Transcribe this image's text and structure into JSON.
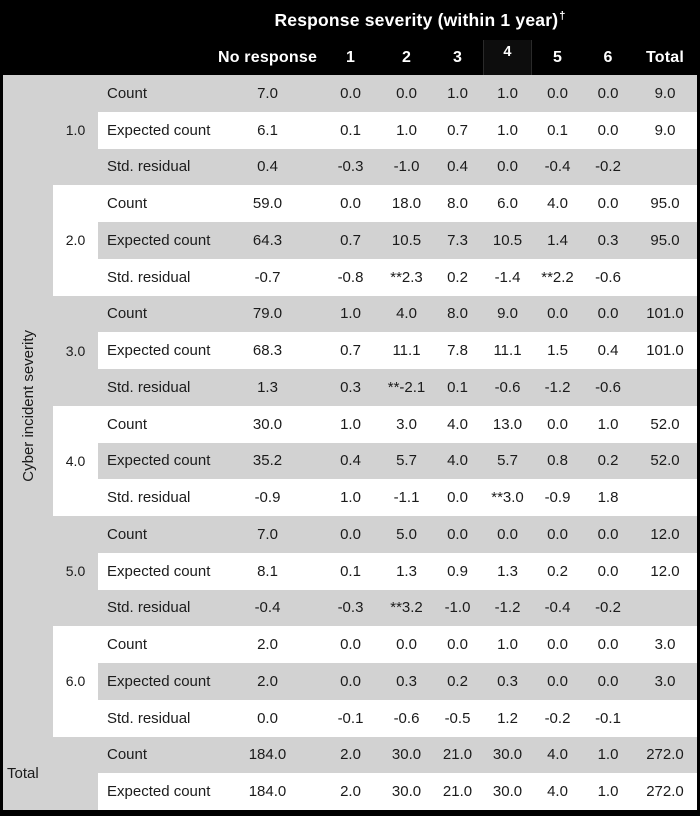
{
  "chart_data": {
    "type": "table",
    "title": "Response severity (within 1 year)",
    "title_footnote_marker": "†",
    "columns": [
      "No response",
      "1",
      "2",
      "3",
      "4",
      "5",
      "6",
      "Total"
    ],
    "row_axis_label": "Cyber incident severity",
    "row_type_labels": {
      "count": "Count",
      "expected": "Expected count",
      "residual": "Std. residual"
    },
    "significance_marker": "**",
    "groups": [
      {
        "label": "1.0",
        "count": [
          "7.0",
          "0.0",
          "0.0",
          "1.0",
          "1.0",
          "0.0",
          "0.0",
          "9.0"
        ],
        "expected": [
          "6.1",
          "0.1",
          "1.0",
          "0.7",
          "1.0",
          "0.1",
          "0.0",
          "9.0"
        ],
        "residual": [
          "0.4",
          "-0.3",
          "-1.0",
          "0.4",
          "0.0",
          "-0.4",
          "-0.2",
          ""
        ]
      },
      {
        "label": "2.0",
        "count": [
          "59.0",
          "0.0",
          "18.0",
          "8.0",
          "6.0",
          "4.0",
          "0.0",
          "95.0"
        ],
        "expected": [
          "64.3",
          "0.7",
          "10.5",
          "7.3",
          "10.5",
          "1.4",
          "0.3",
          "95.0"
        ],
        "residual": [
          "-0.7",
          "-0.8",
          "**2.3",
          "0.2",
          "-1.4",
          "**2.2",
          "-0.6",
          ""
        ]
      },
      {
        "label": "3.0",
        "count": [
          "79.0",
          "1.0",
          "4.0",
          "8.0",
          "9.0",
          "0.0",
          "0.0",
          "101.0"
        ],
        "expected": [
          "68.3",
          "0.7",
          "11.1",
          "7.8",
          "11.1",
          "1.5",
          "0.4",
          "101.0"
        ],
        "residual": [
          "1.3",
          "0.3",
          "**-2.1",
          "0.1",
          "-0.6",
          "-1.2",
          "-0.6",
          ""
        ]
      },
      {
        "label": "4.0",
        "count": [
          "30.0",
          "1.0",
          "3.0",
          "4.0",
          "13.0",
          "0.0",
          "1.0",
          "52.0"
        ],
        "expected": [
          "35.2",
          "0.4",
          "5.7",
          "4.0",
          "5.7",
          "0.8",
          "0.2",
          "52.0"
        ],
        "residual": [
          "-0.9",
          "1.0",
          "-1.1",
          "0.0",
          "**3.0",
          "-0.9",
          "1.8",
          ""
        ]
      },
      {
        "label": "5.0",
        "count": [
          "7.0",
          "0.0",
          "5.0",
          "0.0",
          "0.0",
          "0.0",
          "0.0",
          "12.0"
        ],
        "expected": [
          "8.1",
          "0.1",
          "1.3",
          "0.9",
          "1.3",
          "0.2",
          "0.0",
          "12.0"
        ],
        "residual": [
          "-0.4",
          "-0.3",
          "**3.2",
          "-1.0",
          "-1.2",
          "-0.4",
          "-0.2",
          ""
        ]
      },
      {
        "label": "6.0",
        "count": [
          "2.0",
          "0.0",
          "0.0",
          "0.0",
          "1.0",
          "0.0",
          "0.0",
          "3.0"
        ],
        "expected": [
          "2.0",
          "0.0",
          "0.3",
          "0.2",
          "0.3",
          "0.0",
          "0.0",
          "3.0"
        ],
        "residual": [
          "0.0",
          "-0.1",
          "-0.6",
          "-0.5",
          "1.2",
          "-0.2",
          "-0.1",
          ""
        ]
      }
    ],
    "total": {
      "label": "Total",
      "count": [
        "184.0",
        "2.0",
        "30.0",
        "21.0",
        "30.0",
        "4.0",
        "1.0",
        "272.0"
      ],
      "expected": [
        "184.0",
        "2.0",
        "30.0",
        "21.0",
        "30.0",
        "4.0",
        "1.0",
        "272.0"
      ]
    },
    "colors": {
      "header_bg": "#000000",
      "header_text": "#ffffff",
      "shaded_row": "#d2d2d2",
      "body_text": "#1b1b1b"
    }
  }
}
